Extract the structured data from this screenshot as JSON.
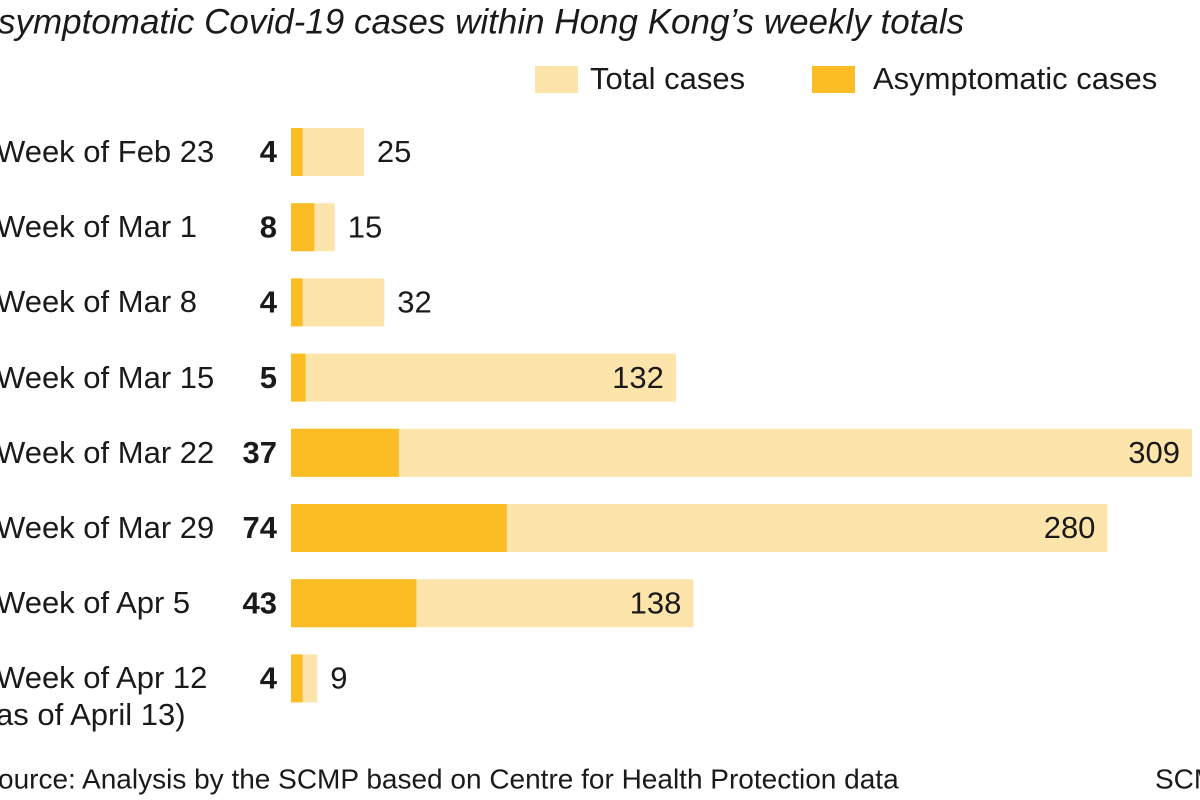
{
  "chart_data": {
    "type": "bar",
    "title": "symptomatic Covid-19 cases within Hong Kong’s weekly totals",
    "categories": [
      "Week of Feb 23",
      "Week of Mar 1",
      "Week of Mar 8",
      "Week of Mar 15",
      "Week of Mar 22",
      "Week of Mar 29",
      "Week of Apr 5",
      "Week of Apr 12\nas of April 13)"
    ],
    "series": [
      {
        "name": "Total cases",
        "color": "#fde4aa",
        "values": [
          25,
          15,
          32,
          132,
          309,
          280,
          138,
          9
        ]
      },
      {
        "name": "Asymptomatic cases",
        "color": "#fbbd23",
        "values": [
          4,
          8,
          4,
          5,
          37,
          74,
          43,
          4
        ]
      }
    ],
    "xlim": [
      0,
      309
    ],
    "source": "ource: Analysis by the SCMP based on Centre for Health Protection data",
    "credit": "SCM"
  }
}
